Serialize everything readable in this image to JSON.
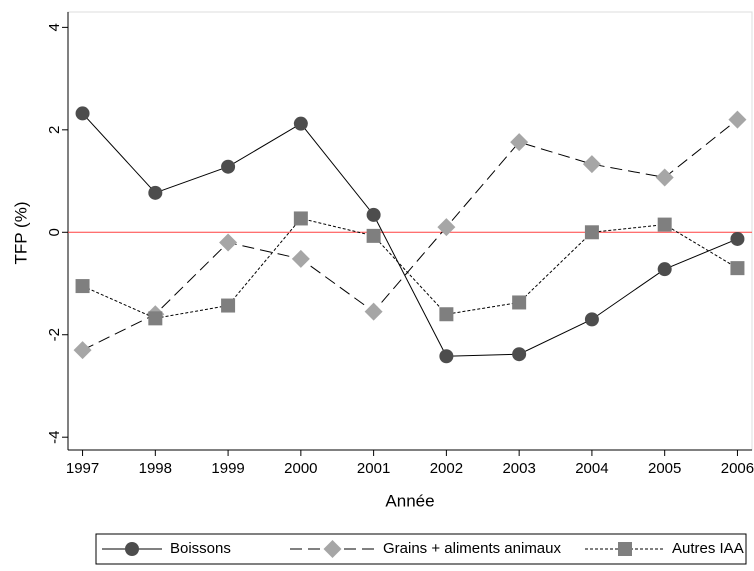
{
  "chart_data": {
    "type": "line",
    "x_label": "Année",
    "y_label": "TFP (%)",
    "x": [
      1997,
      1998,
      1999,
      2000,
      2001,
      2002,
      2003,
      2004,
      2005,
      2006
    ],
    "xlim": [
      1996.8,
      2006.2
    ],
    "xticks": [
      1997,
      1998,
      1999,
      2000,
      2001,
      2002,
      2003,
      2004,
      2005,
      2006
    ],
    "ylim": [
      -4.25,
      4.3
    ],
    "yticks": [
      -4,
      -2,
      0,
      2,
      4
    ],
    "reference_line": {
      "value": 0,
      "color": "#ff4040"
    },
    "legend": "bottom",
    "series": [
      {
        "name": "Boissons",
        "color": "#4d4d4d",
        "line_style": "solid",
        "marker": "circle",
        "values": [
          2.32,
          0.77,
          1.28,
          2.12,
          0.34,
          -2.42,
          -2.38,
          -1.7,
          -0.72,
          -0.13
        ]
      },
      {
        "name": "Grains + aliments animaux",
        "color": "#a6a6a6",
        "line_style": "dashed",
        "marker": "diamond",
        "values": [
          -2.3,
          -1.6,
          -0.2,
          -0.52,
          -1.55,
          0.1,
          1.76,
          1.33,
          1.07,
          2.2
        ]
      },
      {
        "name": "Autres IAA",
        "color": "#7f7f7f",
        "line_style": "dotted",
        "marker": "square",
        "values": [
          -1.05,
          -1.68,
          -1.43,
          0.27,
          -0.07,
          -1.6,
          -1.37,
          0.0,
          0.15,
          -0.7
        ]
      }
    ]
  }
}
